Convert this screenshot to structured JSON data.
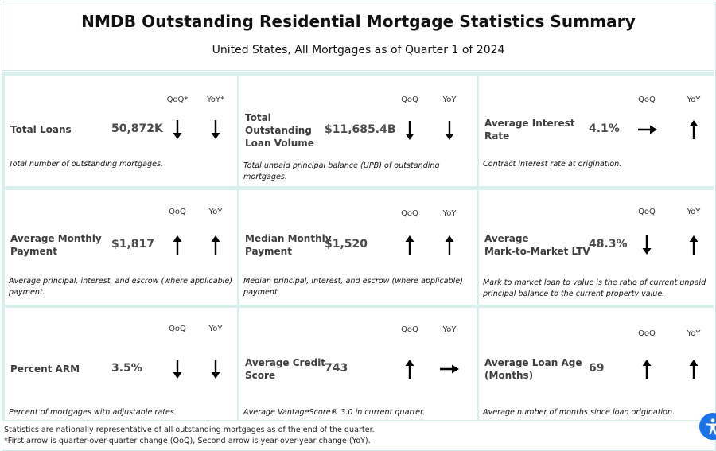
{
  "title": "NMDB Outstanding Residential Mortgage Statistics Summary",
  "subtitle": "United States, All Mortgages as of Quarter 1 of 2024",
  "colors": {
    "accent_border": "#d9efec",
    "arrow": "#000000",
    "accessibility_button": "#1a73e8"
  },
  "cards": [
    {
      "label": "Total Loans",
      "value": "50,872K",
      "qoq_header": "QoQ*",
      "yoy_header": "YoY*",
      "qoq": "down",
      "yoy": "down",
      "description": "Total number of outstanding mortgages."
    },
    {
      "label": "Total\nOutstanding\nLoan Volume",
      "value": "$11,685.4B",
      "qoq_header": "QoQ",
      "yoy_header": "YoY",
      "qoq": "down",
      "yoy": "down",
      "description": "Total unpaid principal balance (UPB) of outstanding mortgages."
    },
    {
      "label": "Average Interest\nRate",
      "value": "4.1%",
      "qoq_header": "QoQ",
      "yoy_header": "YoY",
      "qoq": "right",
      "yoy": "up",
      "description": "Contract interest rate at origination."
    },
    {
      "label": "Average Monthly\nPayment",
      "value": "$1,817",
      "qoq_header": "QoQ",
      "yoy_header": "YoY",
      "qoq": "up",
      "yoy": "up",
      "description": "Average principal, interest, and escrow (where applicable) payment."
    },
    {
      "label": "Median Monthly\nPayment",
      "value": "$1,520",
      "qoq_header": "QoQ",
      "yoy_header": "YoY",
      "qoq": "up",
      "yoy": "up",
      "description": "Median principal, interest, and escrow (where applicable) payment."
    },
    {
      "label": "Average\nMark-to-Market LTV",
      "value": "48.3%",
      "qoq_header": "QoQ",
      "yoy_header": "YoY",
      "qoq": "down",
      "yoy": "up",
      "description": "Mark to market loan to value is the ratio of current unpaid principal balance to the current property value."
    },
    {
      "label": "Percent ARM",
      "value": "3.5%",
      "qoq_header": "QoQ",
      "yoy_header": "YoY",
      "qoq": "down",
      "yoy": "down",
      "description": "Percent of mortgages with adjustable rates."
    },
    {
      "label": "Average Credit\nScore",
      "value": "743",
      "qoq_header": "QoQ",
      "yoy_header": "YoY",
      "qoq": "up",
      "yoy": "right",
      "description": "Average VantageScore® 3.0 in current quarter."
    },
    {
      "label": "Average Loan Age\n(Months)",
      "value": "69",
      "qoq_header": "QoQ",
      "yoy_header": "YoY",
      "qoq": "up",
      "yoy": "up",
      "description": "Average number of months since loan origination."
    }
  ],
  "footer": {
    "line1": "Statistics are nationally representative of all outstanding mortgages as of the end of the quarter.",
    "line2": "*First arrow is quarter-over-quarter change (QoQ), Second arrow is year-over-year change (YoY)."
  },
  "accessibility_icon": "accessibility-icon"
}
